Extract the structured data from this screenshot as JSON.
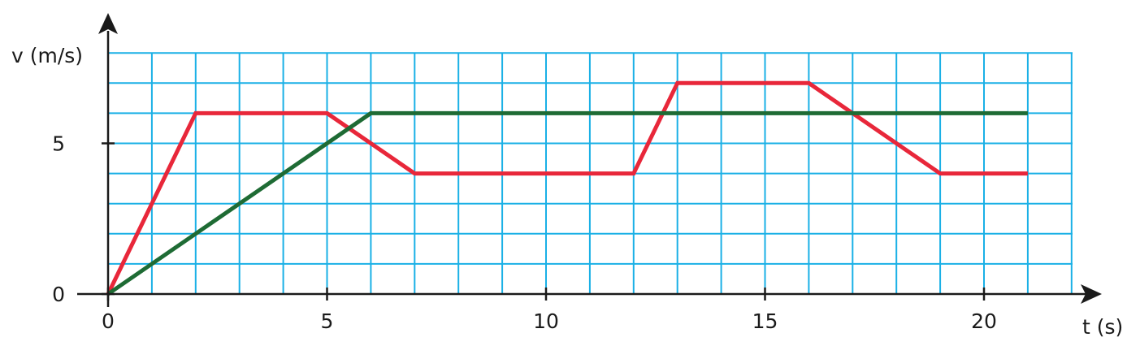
{
  "chart_data": {
    "type": "line",
    "xlabel": "t (s)",
    "ylabel": "v (m/s)",
    "xlim": [
      0,
      22
    ],
    "ylim": [
      0,
      8
    ],
    "grid_x_step": 1,
    "grid_y_step": 1,
    "grid": true,
    "grid_color": "#1ab0e6",
    "x_tick_values": [
      0,
      5,
      10,
      15,
      20
    ],
    "x_tick_labels": [
      "0",
      "5",
      "10",
      "15",
      "20"
    ],
    "y_tick_values": [
      0,
      5
    ],
    "y_tick_labels": [
      "0",
      "5"
    ],
    "series": [
      {
        "color": "#e8273a",
        "points": [
          [
            0,
            0
          ],
          [
            2,
            6
          ],
          [
            5,
            6
          ],
          [
            7,
            4
          ],
          [
            12,
            4
          ],
          [
            13,
            7
          ],
          [
            16,
            7
          ],
          [
            19,
            4
          ],
          [
            21,
            4
          ]
        ]
      },
      {
        "color": "#1e6b34",
        "points": [
          [
            0,
            0
          ],
          [
            6,
            6
          ],
          [
            21,
            6
          ]
        ]
      }
    ]
  }
}
